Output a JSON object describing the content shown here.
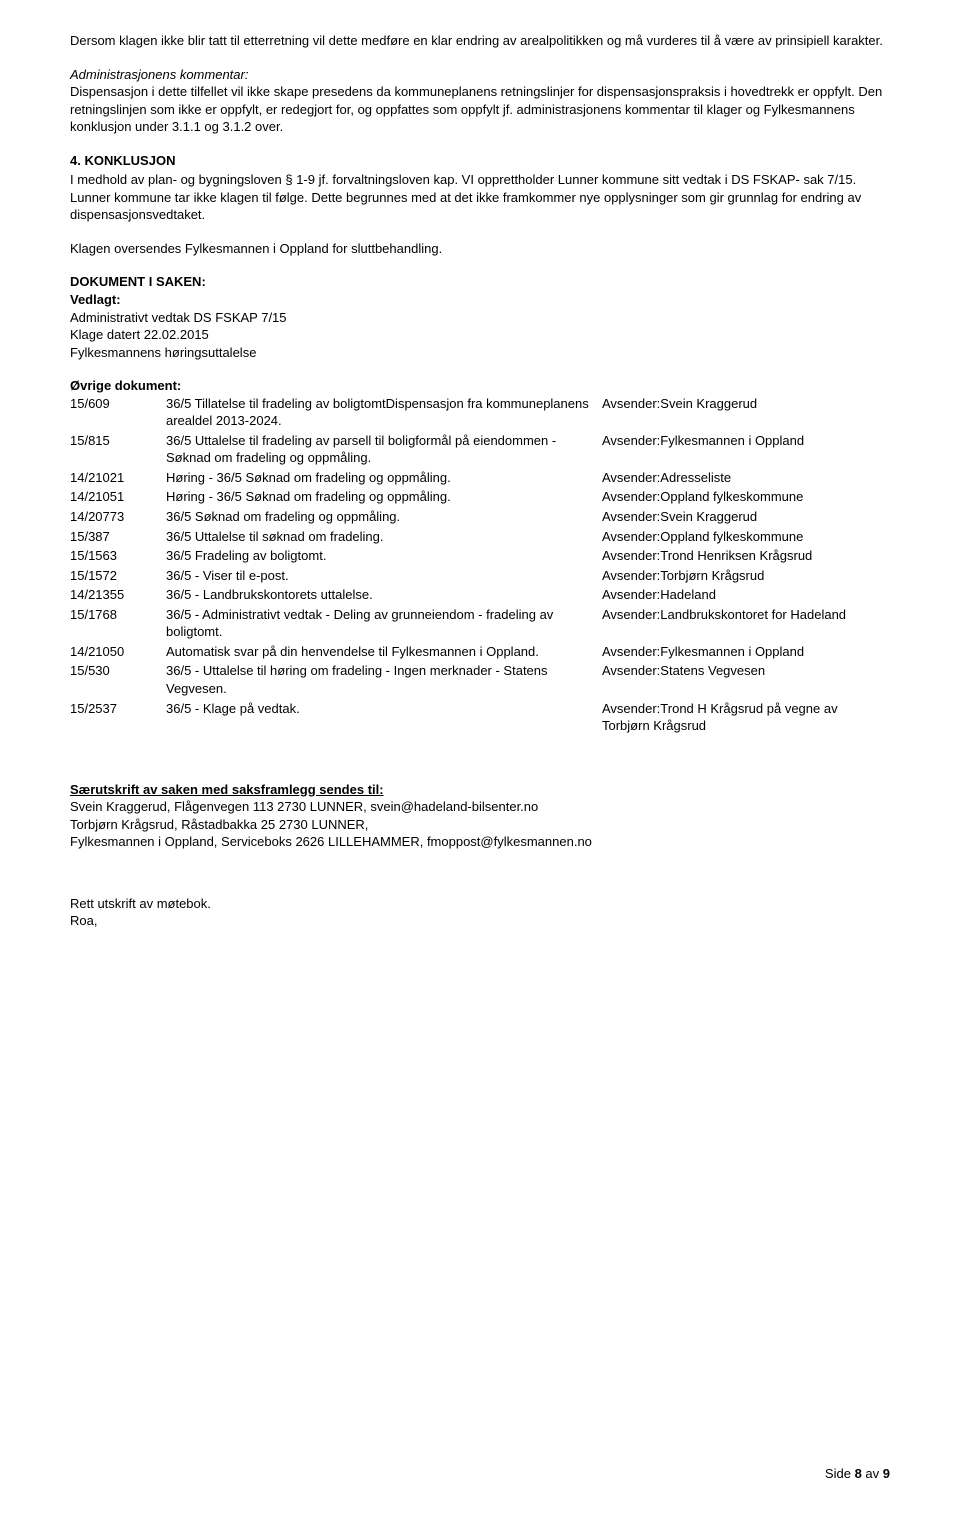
{
  "p1": "Dersom klagen ikke blir tatt til etterretning vil dette medføre en klar endring av arealpolitikken og må vurderes til å være av prinsipiell karakter.",
  "admin_heading": "Administrasjonens kommentar:",
  "admin_body": "Dispensasjon i dette tilfellet vil ikke skape presedens da kommuneplanens retningslinjer for dispensasjonspraksis i hovedtrekk er oppfylt. Den retningslinjen som ikke er oppfylt, er redegjort for, og oppfattes som oppfylt jf. administrasjonens kommentar til klager og Fylkesmannens konklusjon under 3.1.1 og 3.1.2 over.",
  "konklusjon_heading": "4. KONKLUSJON",
  "konklusjon_body": "I medhold av plan- og bygningsloven § 1-9 jf. forvaltningsloven kap. VI opprettholder Lunner kommune sitt vedtak i DS FSKAP- sak 7/15. Lunner kommune tar ikke klagen til følge. Dette begrunnes med at det ikke framkommer nye opplysninger som gir grunnlag for endring av dispensasjonsvedtaket.",
  "oversendes": "Klagen oversendes Fylkesmannen i Oppland for sluttbehandling.",
  "dokument_heading": "DOKUMENT I SAKEN:",
  "vedlagt_heading": "Vedlagt:",
  "vedlagt_lines": [
    "Administrativt vedtak  DS FSKAP 7/15",
    "Klage datert 22.02.2015",
    "Fylkesmannens høringsuttalelse"
  ],
  "ovrige_heading": "Øvrige dokument:",
  "docs": [
    {
      "id": "15/609",
      "desc": "36/5 Tillatelse til fradeling av boligtomtDispensasjon fra kommuneplanens arealdel 2013-2024.",
      "sender": "Avsender:Svein Kraggerud"
    },
    {
      "id": "15/815",
      "desc": "36/5 Uttalelse til fradeling av parsell til boligformål på eiendommen - Søknad om fradeling og oppmåling.",
      "sender": "Avsender:Fylkesmannen i Oppland"
    },
    {
      "id": "14/21021",
      "desc": "Høring - 36/5 Søknad om fradeling og oppmåling.",
      "sender": "Avsender:Adresseliste"
    },
    {
      "id": "14/21051",
      "desc": "Høring - 36/5 Søknad om fradeling og oppmåling.",
      "sender": "Avsender:Oppland fylkeskommune"
    },
    {
      "id": "14/20773",
      "desc": "36/5 Søknad om fradeling og oppmåling.",
      "sender": "Avsender:Svein Kraggerud"
    },
    {
      "id": "15/387",
      "desc": "36/5 Uttalelse til søknad om fradeling.",
      "sender": "Avsender:Oppland fylkeskommune"
    },
    {
      "id": "15/1563",
      "desc": "36/5 Fradeling av boligtomt.",
      "sender": "Avsender:Trond Henriksen Krågsrud"
    },
    {
      "id": "15/1572",
      "desc": "36/5 - Viser til e-post.",
      "sender": "Avsender:Torbjørn Krågsrud"
    },
    {
      "id": "14/21355",
      "desc": "36/5 - Landbrukskontorets uttalelse.",
      "sender": "Avsender:Hadeland"
    },
    {
      "id": "15/1768",
      "desc": "36/5 - Administrativt vedtak - Deling av grunneiendom - fradeling av boligtomt.",
      "sender": "Avsender:Landbrukskontoret for Hadeland"
    },
    {
      "id": "14/21050",
      "desc": "Automatisk svar på din henvendelse til Fylkesmannen i Oppland.",
      "sender": "Avsender:Fylkesmannen i Oppland"
    },
    {
      "id": "15/530",
      "desc": "36/5 - Uttalelse til høring om fradeling - Ingen merknader - Statens Vegvesen.",
      "sender": "Avsender:Statens Vegvesen"
    },
    {
      "id": "15/2537",
      "desc": "36/5 - Klage på vedtak.",
      "sender": "Avsender:Trond H Krågsrud på vegne av Torbjørn Krågsrud"
    }
  ],
  "saer_heading": "Særutskrift av saken med saksframlegg sendes til:",
  "saer_lines": [
    "Svein Kraggerud, Flågenvegen 113 2730 LUNNER, svein@hadeland-bilsenter.no",
    "Torbjørn Krågsrud, Råstadbakka 25 2730 LUNNER,",
    "Fylkesmannen i Oppland, Serviceboks 2626 LILLEHAMMER, fmoppost@fylkesmannen.no"
  ],
  "utskrift_line1": "Rett utskrift av møtebok.",
  "utskrift_line2": "Roa,",
  "page_label_prefix": "Side ",
  "page_current": "8",
  "page_sep": " av ",
  "page_total": "9"
}
